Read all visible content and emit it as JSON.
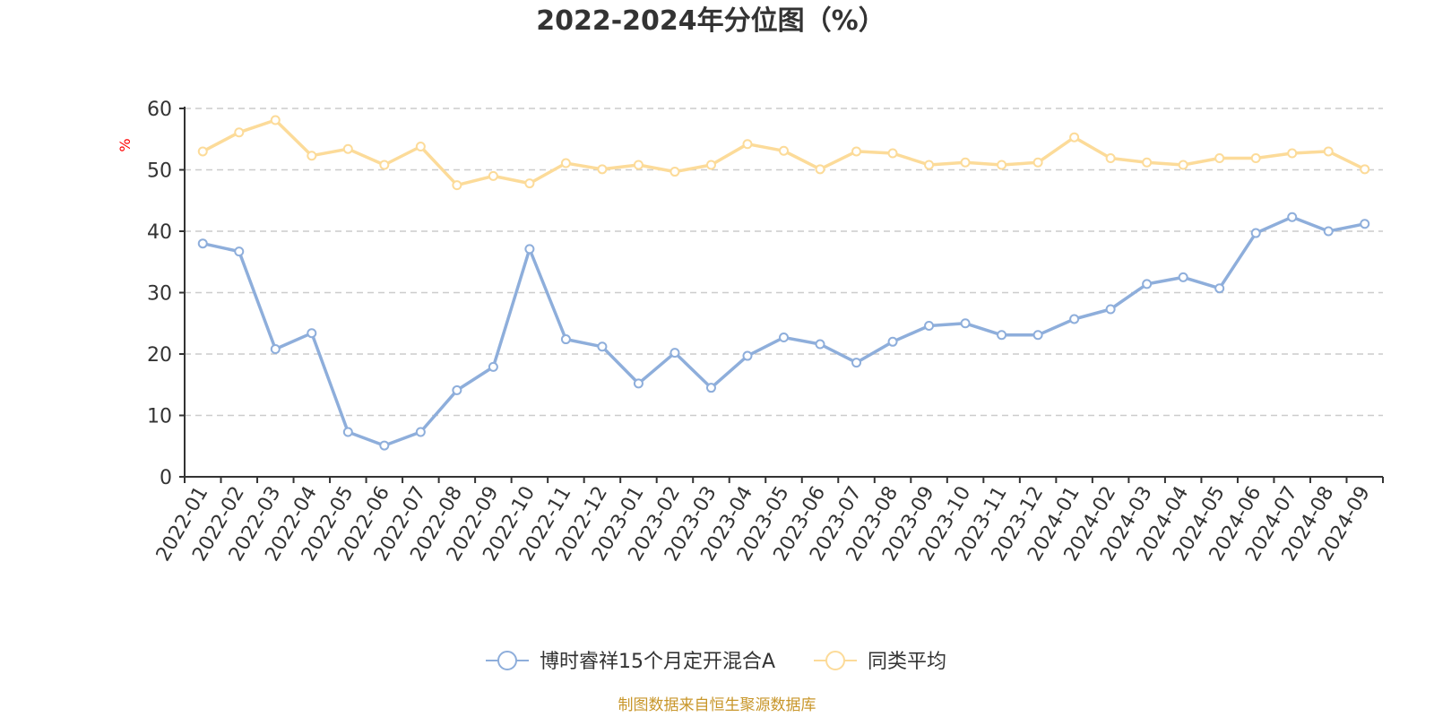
{
  "chart_data": {
    "type": "line",
    "title": "2022-2024年分位图（%）",
    "ylabel": "%",
    "ylim": [
      0,
      60
    ],
    "yticks": [
      0,
      10,
      20,
      30,
      40,
      50,
      60
    ],
    "ytick_labels": [
      "0",
      "10",
      "20",
      "30",
      "40",
      "50",
      "60"
    ],
    "grid": "horizontal-dashed",
    "legend_position": "bottom",
    "categories": [
      "2022-01",
      "2022-02",
      "2022-03",
      "2022-04",
      "2022-05",
      "2022-06",
      "2022-07",
      "2022-08",
      "2022-09",
      "2022-10",
      "2022-11",
      "2022-12",
      "2023-01",
      "2023-02",
      "2023-03",
      "2023-04",
      "2023-05",
      "2023-06",
      "2023-07",
      "2023-08",
      "2023-09",
      "2023-10",
      "2023-11",
      "2023-12",
      "2024-01",
      "2024-02",
      "2024-03",
      "2024-04",
      "2024-05",
      "2024-06",
      "2024-07",
      "2024-08",
      "2024-09"
    ],
    "series": [
      {
        "name": "博时睿祥15个月定开混合A",
        "color": "#8eaedb",
        "values": [
          38.0,
          36.7,
          20.8,
          23.4,
          7.3,
          5.1,
          7.3,
          14.1,
          17.9,
          37.1,
          22.4,
          21.2,
          15.2,
          20.2,
          14.5,
          19.7,
          22.7,
          21.6,
          18.6,
          22.0,
          24.6,
          25.0,
          23.1,
          23.1,
          25.7,
          27.3,
          31.4,
          32.5,
          30.7,
          39.7,
          42.3,
          40.0,
          41.2
        ]
      },
      {
        "name": "同类平均",
        "color": "#fcdb99",
        "values": [
          53.0,
          56.1,
          58.1,
          52.3,
          53.4,
          50.8,
          53.8,
          47.5,
          49.0,
          47.8,
          51.1,
          50.1,
          50.8,
          49.7,
          50.8,
          54.2,
          53.1,
          50.1,
          53.0,
          52.7,
          50.8,
          51.2,
          50.8,
          51.2,
          55.3,
          51.9,
          51.2,
          50.8,
          51.9,
          51.9,
          52.7,
          53.0,
          50.1
        ]
      }
    ]
  },
  "colors": {
    "title": "#333333",
    "unit": "#ff0000",
    "axis": "#333333",
    "grid": "#cccccc",
    "source": "#c8962a"
  },
  "footer": {
    "source": "制图数据来自恒生聚源数据库"
  }
}
